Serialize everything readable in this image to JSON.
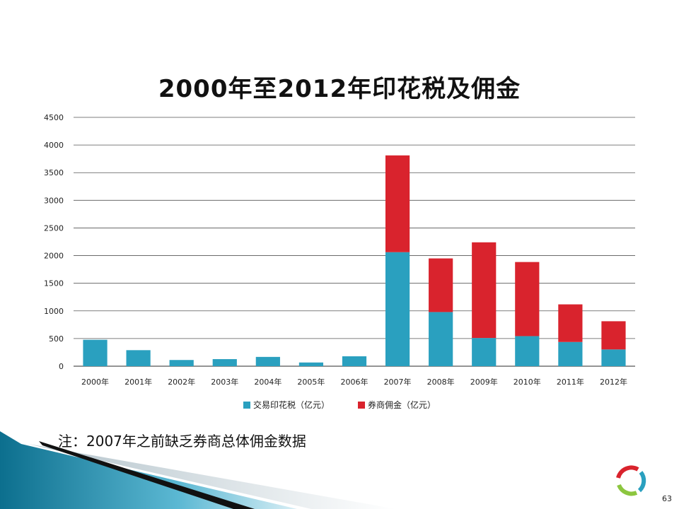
{
  "slide": {
    "note": "注：2007年之前缺乏券商总体佣金数据",
    "page_number": "63"
  },
  "colors": {
    "stamp_duty": "#2aa0bf",
    "commission": "#d9232d",
    "gridline": "#555555",
    "accent_teal": "#1f8fb0"
  },
  "chart_data": {
    "type": "bar",
    "stacked": true,
    "title": "2000年至2012年印花税及佣金",
    "xlabel": "",
    "ylabel": "",
    "categories": [
      "2000年",
      "2001年",
      "2002年",
      "2003年",
      "2004年",
      "2005年",
      "2006年",
      "2007年",
      "2008年",
      "2009年",
      "2010年",
      "2011年",
      "2012年"
    ],
    "series": [
      {
        "name": "交易印花税（亿元）",
        "values": [
          478,
          290,
          112,
          128,
          168,
          67,
          179,
          2062,
          979,
          510,
          544,
          438,
          303
        ],
        "color": "#2aa0bf"
      },
      {
        "name": "券商佣金（亿元）",
        "values": [
          0,
          0,
          0,
          0,
          0,
          0,
          0,
          1750,
          970,
          1730,
          1340,
          680,
          510
        ],
        "color": "#d9232d"
      }
    ],
    "ylim": [
      0,
      4500
    ],
    "yticks": [
      0,
      500,
      1000,
      1500,
      2000,
      2500,
      3000,
      3500,
      4000,
      4500
    ],
    "grid": true,
    "legend_position": "bottom"
  }
}
